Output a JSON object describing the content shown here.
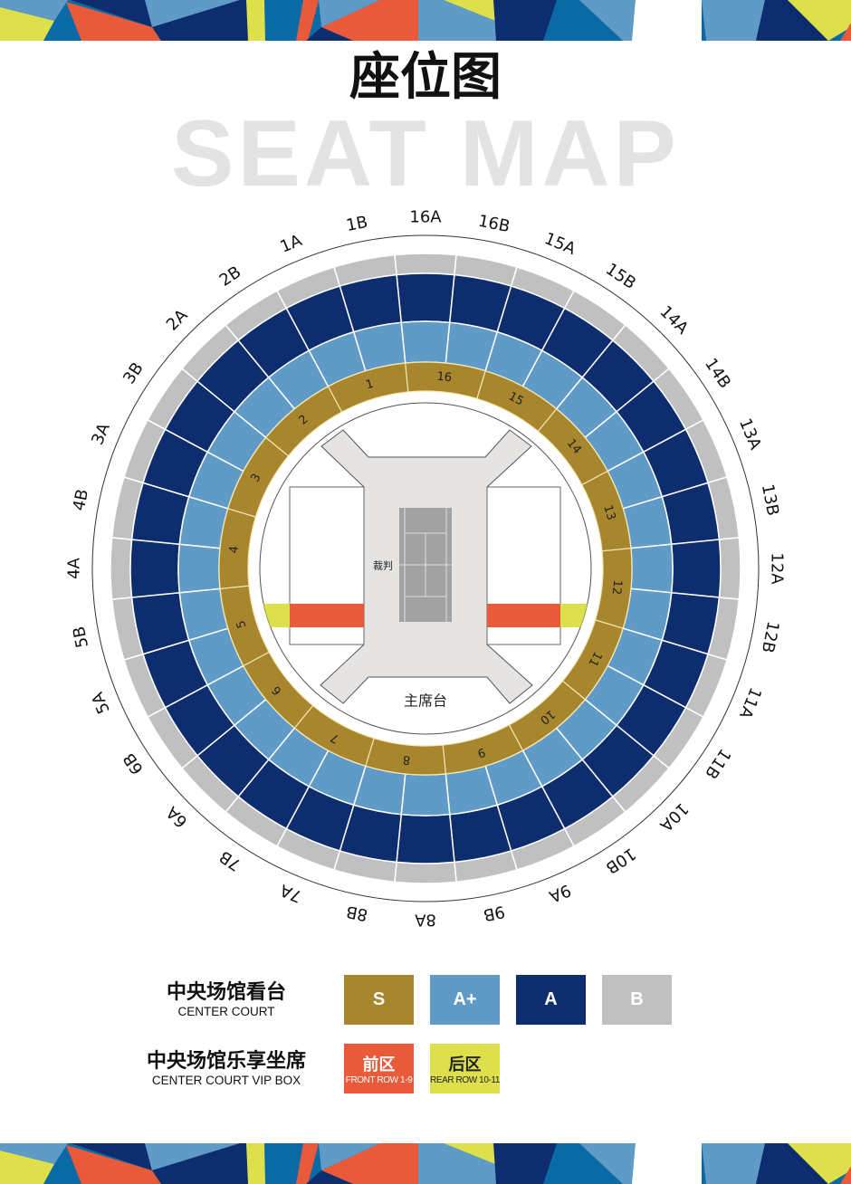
{
  "header": {
    "title": "座位图",
    "watermark": "SEAT MAP"
  },
  "colors": {
    "S": "#a8862e",
    "A_plus": "#5f9bc6",
    "A": "#0d2d6e",
    "B": "#c0c0c0",
    "front": "#e85a3a",
    "rear": "#dde04a",
    "stage": "#e6e4e2",
    "court": "#a2a2a2",
    "banner_navy": "#0d2d6e",
    "banner_mid_blue": "#0a6aa6",
    "banner_light_blue": "#5f9bc6",
    "banner_red": "#e85a3a",
    "banner_yellow": "#dde04a"
  },
  "seat_map": {
    "outer_sections": [
      "16A",
      "16B",
      "15A",
      "15B",
      "14A",
      "14B",
      "13A",
      "13B",
      "12A",
      "12B",
      "11A",
      "11B",
      "10A",
      "10B",
      "9A",
      "9B",
      "8A",
      "8B",
      "7A",
      "7B",
      "6A",
      "6B",
      "5A",
      "5B",
      "4A",
      "4B",
      "3A",
      "3B",
      "2A",
      "2B",
      "1A",
      "1B"
    ],
    "inner_sections": [
      "16",
      "15",
      "14",
      "13",
      "12",
      "11",
      "10",
      "9",
      "8",
      "7",
      "6",
      "5",
      "4",
      "3",
      "2",
      "1"
    ],
    "umpire_label": "裁判",
    "vip_stand_label": "主席台"
  },
  "legend": {
    "center_court": {
      "title": "中央场馆看台",
      "subtitle": "CENTER COURT",
      "tiers": [
        {
          "label": "S"
        },
        {
          "label": "A+"
        },
        {
          "label": "A"
        },
        {
          "label": "B"
        }
      ]
    },
    "vip_box": {
      "title": "中央场馆乐享坐席",
      "subtitle": "CENTER COURT VIP BOX",
      "zones": [
        {
          "label": "前区",
          "sub": "FRONT ROW 1-9"
        },
        {
          "label": "后区",
          "sub": "REAR ROW 10-11"
        }
      ]
    }
  }
}
